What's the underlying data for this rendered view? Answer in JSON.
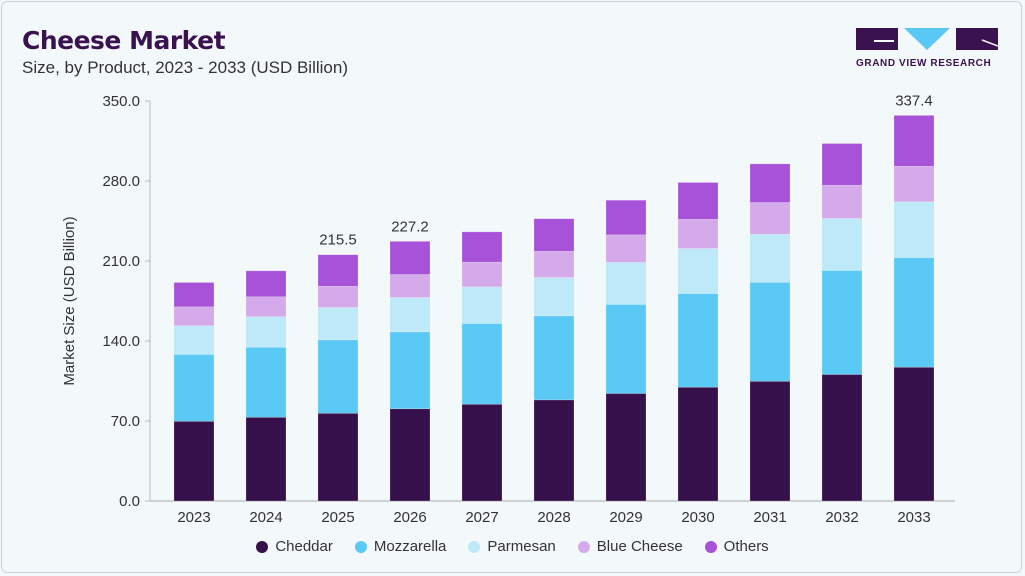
{
  "header": {
    "title": "Cheese Market",
    "subtitle": "Size, by Product, 2023 - 2033 (USD Billion)"
  },
  "logo": {
    "text": "GRAND VIEW RESEARCH",
    "colors": [
      "#3a1250",
      "#5ac8f5"
    ]
  },
  "chart_data": {
    "type": "bar",
    "stacked": true,
    "title": "Cheese Market",
    "subtitle": "Size, by Product, 2023 - 2033 (USD Billion)",
    "xlabel": "",
    "ylabel": "Market Size (USD Billion)",
    "ylim": [
      0,
      350
    ],
    "yticks": [
      "0.0",
      "70.0",
      "140.0",
      "210.0",
      "280.0",
      "350.0"
    ],
    "grid": false,
    "legend_position": "bottom",
    "categories": [
      "2023",
      "2024",
      "2025",
      "2026",
      "2027",
      "2028",
      "2029",
      "2030",
      "2031",
      "2032",
      "2033"
    ],
    "series": [
      {
        "name": "Cheddar",
        "color": "#36104a",
        "values": [
          69.8,
          73.3,
          76.8,
          80.7,
          84.7,
          88.5,
          94.1,
          99.6,
          104.8,
          110.7,
          117.1
        ]
      },
      {
        "name": "Mozzarella",
        "color": "#5bc9f6",
        "values": [
          58.4,
          61.3,
          64.2,
          67.3,
          70.6,
          73.5,
          77.9,
          81.9,
          86.6,
          91.0,
          95.9
        ]
      },
      {
        "name": "Parmesan",
        "color": "#bde9f8",
        "values": [
          25.1,
          26.6,
          28.3,
          30.0,
          32.1,
          33.5,
          36.7,
          39.4,
          42.0,
          45.5,
          48.8
        ]
      },
      {
        "name": "Blue Cheese",
        "color": "#d4aaeb",
        "values": [
          16.6,
          17.5,
          18.6,
          20.2,
          21.6,
          23.0,
          24.2,
          25.6,
          27.8,
          29.1,
          31.1
        ]
      },
      {
        "name": "Others",
        "color": "#a752d8",
        "values": [
          21.3,
          22.7,
          27.6,
          29.0,
          26.5,
          28.5,
          30.3,
          32.2,
          33.8,
          36.5,
          44.5
        ]
      }
    ],
    "data_labels": [
      {
        "category": "2025",
        "text": "215.5"
      },
      {
        "category": "2026",
        "text": "227.2"
      },
      {
        "category": "2033",
        "text": "337.4"
      }
    ]
  }
}
